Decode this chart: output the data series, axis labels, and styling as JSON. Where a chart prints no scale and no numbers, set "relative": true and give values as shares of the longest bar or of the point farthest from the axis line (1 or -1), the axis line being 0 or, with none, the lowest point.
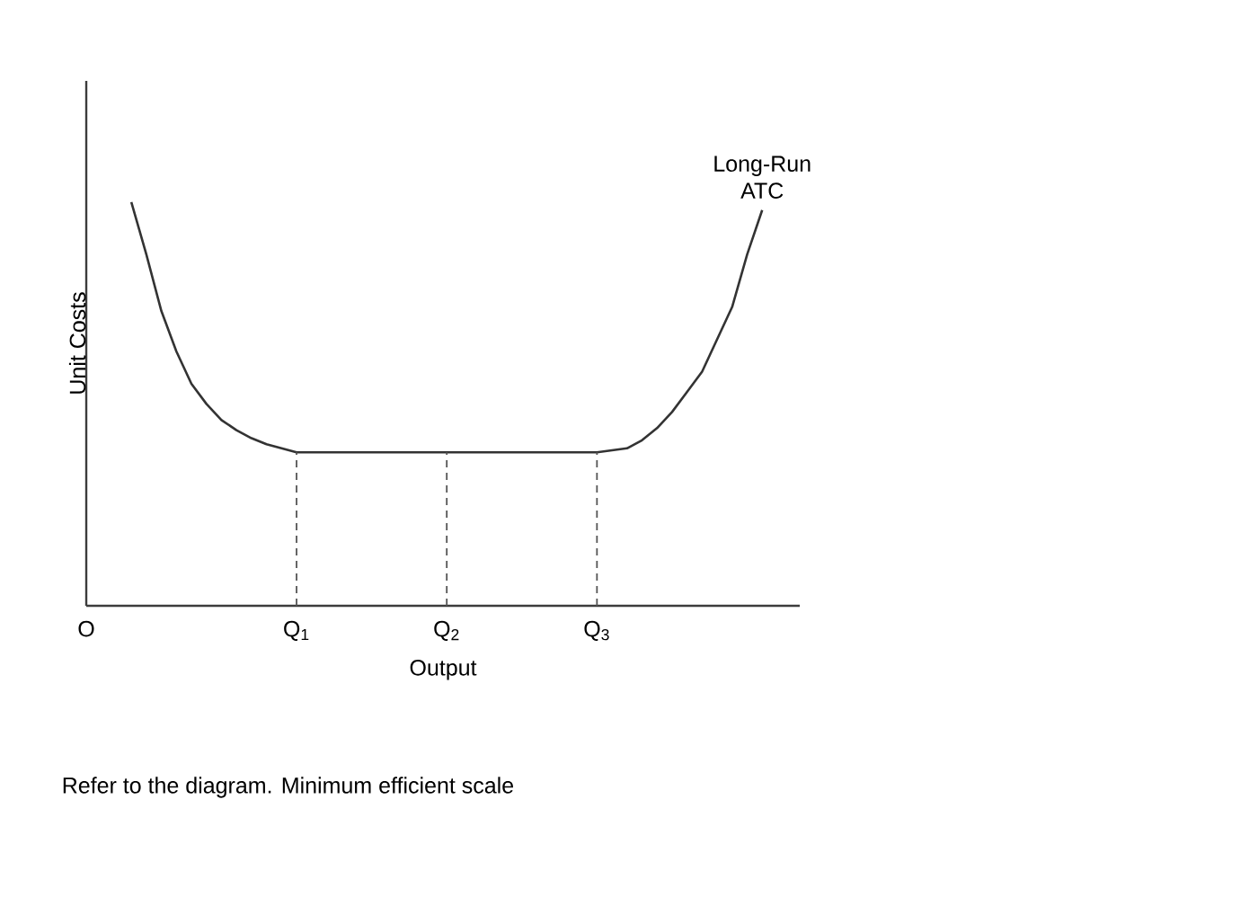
{
  "chart_data": {
    "type": "line",
    "relative": true,
    "xlabel": "Output",
    "ylabel": "Unit Costs",
    "categories": [
      "O",
      null,
      null,
      null,
      null,
      null,
      null,
      null,
      null,
      null,
      null,
      null,
      null,
      null,
      "Q$_{1}$",
      null,
      null,
      null,
      null,
      null,
      null,
      null,
      null,
      null,
      "Q$_{2}$",
      null,
      null,
      null,
      null,
      null,
      null,
      null,
      null,
      null,
      "Q$_{3}$",
      null,
      null,
      null,
      null,
      null,
      null,
      null,
      null,
      null,
      null,
      null,
      null,
      null
    ],
    "tick_labels": "x",
    "grid": false,
    "legend": false,
    "marker": "none",
    "series": [
      {
        "name": "Long-Run ATC",
        "color": "#333333",
        "line_style": "solid",
        "values": [
          null,
          null,
          null,
          1.0,
          0.87,
          0.73,
          0.63,
          0.55,
          0.5,
          0.46,
          0.435,
          0.415,
          0.4,
          0.39,
          0.38,
          0.38,
          0.38,
          0.38,
          0.38,
          0.38,
          0.38,
          0.38,
          0.38,
          0.38,
          0.38,
          0.38,
          0.38,
          0.38,
          0.38,
          0.38,
          0.38,
          0.38,
          0.38,
          0.38,
          0.38,
          0.385,
          0.39,
          0.41,
          0.44,
          0.48,
          0.53,
          0.58,
          0.66,
          0.74,
          0.87,
          0.98,
          null,
          null
        ]
      }
    ],
    "ref_lines": [
      {
        "axis": "x",
        "value": "Q$_{1}$",
        "color": "#555555",
        "line_style": "dashed"
      },
      {
        "axis": "x",
        "value": "Q$_{2}$",
        "color": "#555555",
        "line_style": "dashed"
      },
      {
        "axis": "x",
        "value": "Q$_{3}$",
        "color": "#555555",
        "line_style": "dashed"
      }
    ],
    "annotations": [
      "Refer to the diagram. Minimum efficient scale"
    ]
  }
}
